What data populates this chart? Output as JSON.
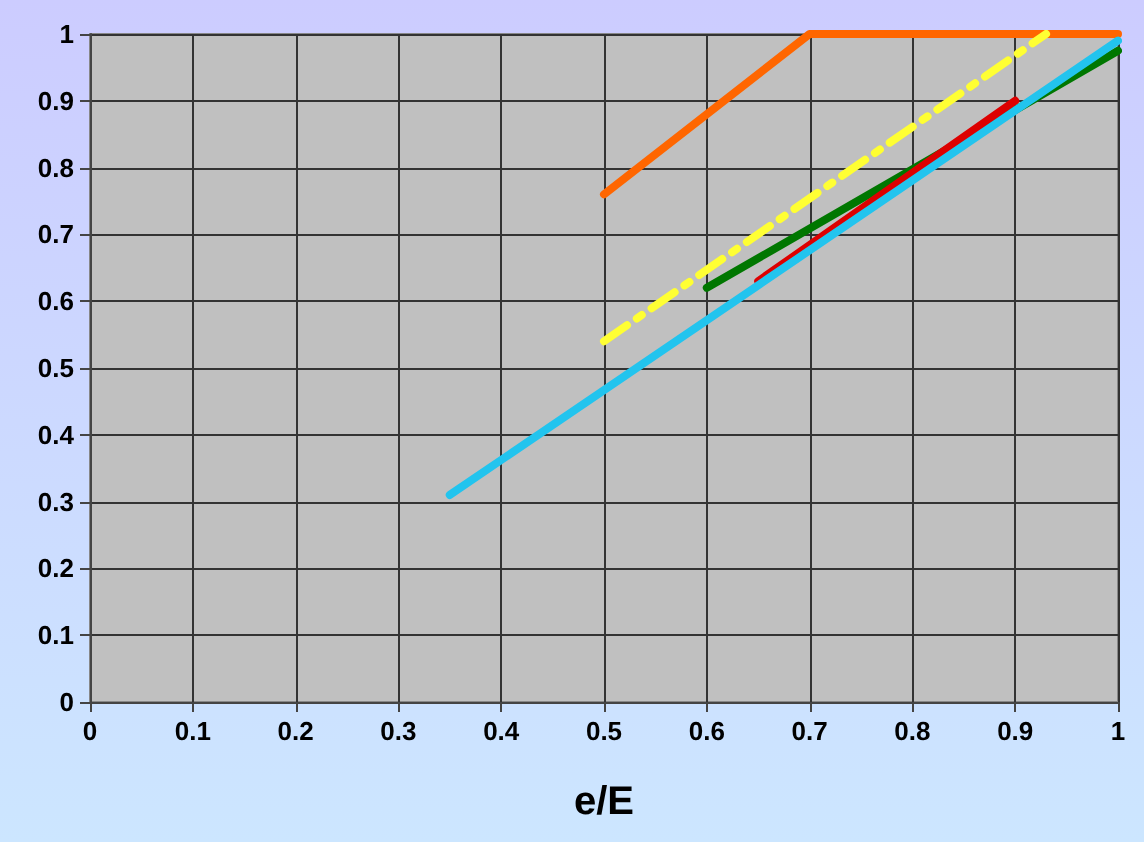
{
  "chart_data": {
    "type": "line",
    "xlabel": "e/E",
    "xlim": [
      0,
      1
    ],
    "xticks": [
      0,
      0.1,
      0.2,
      0.3,
      0.4,
      0.5,
      0.6,
      0.7,
      0.8,
      0.9,
      1
    ],
    "ylim": [
      0,
      1
    ],
    "yticks": [
      0,
      0.1,
      0.2,
      0.3,
      0.4,
      0.5,
      0.6,
      0.7,
      0.8,
      0.9,
      1
    ],
    "grid": true,
    "marker": "none",
    "series": [
      {
        "color": "#ff6600",
        "x": [
          0.5,
          0.7,
          1.0
        ],
        "values": [
          0.76,
          1.0,
          1.0
        ]
      },
      {
        "color": "#ffff33",
        "x": [
          0.5,
          0.93
        ],
        "values": [
          0.54,
          1.0
        ],
        "line_style": "dashed"
      },
      {
        "color": "#007700",
        "x": [
          0.6,
          1.0
        ],
        "values": [
          0.62,
          0.975
        ]
      },
      {
        "color": "#dd0000",
        "x": [
          0.65,
          0.9
        ],
        "values": [
          0.63,
          0.9
        ]
      },
      {
        "color": "#22c4ee",
        "x": [
          0.35,
          1.0
        ],
        "values": [
          0.31,
          0.99
        ]
      }
    ]
  }
}
